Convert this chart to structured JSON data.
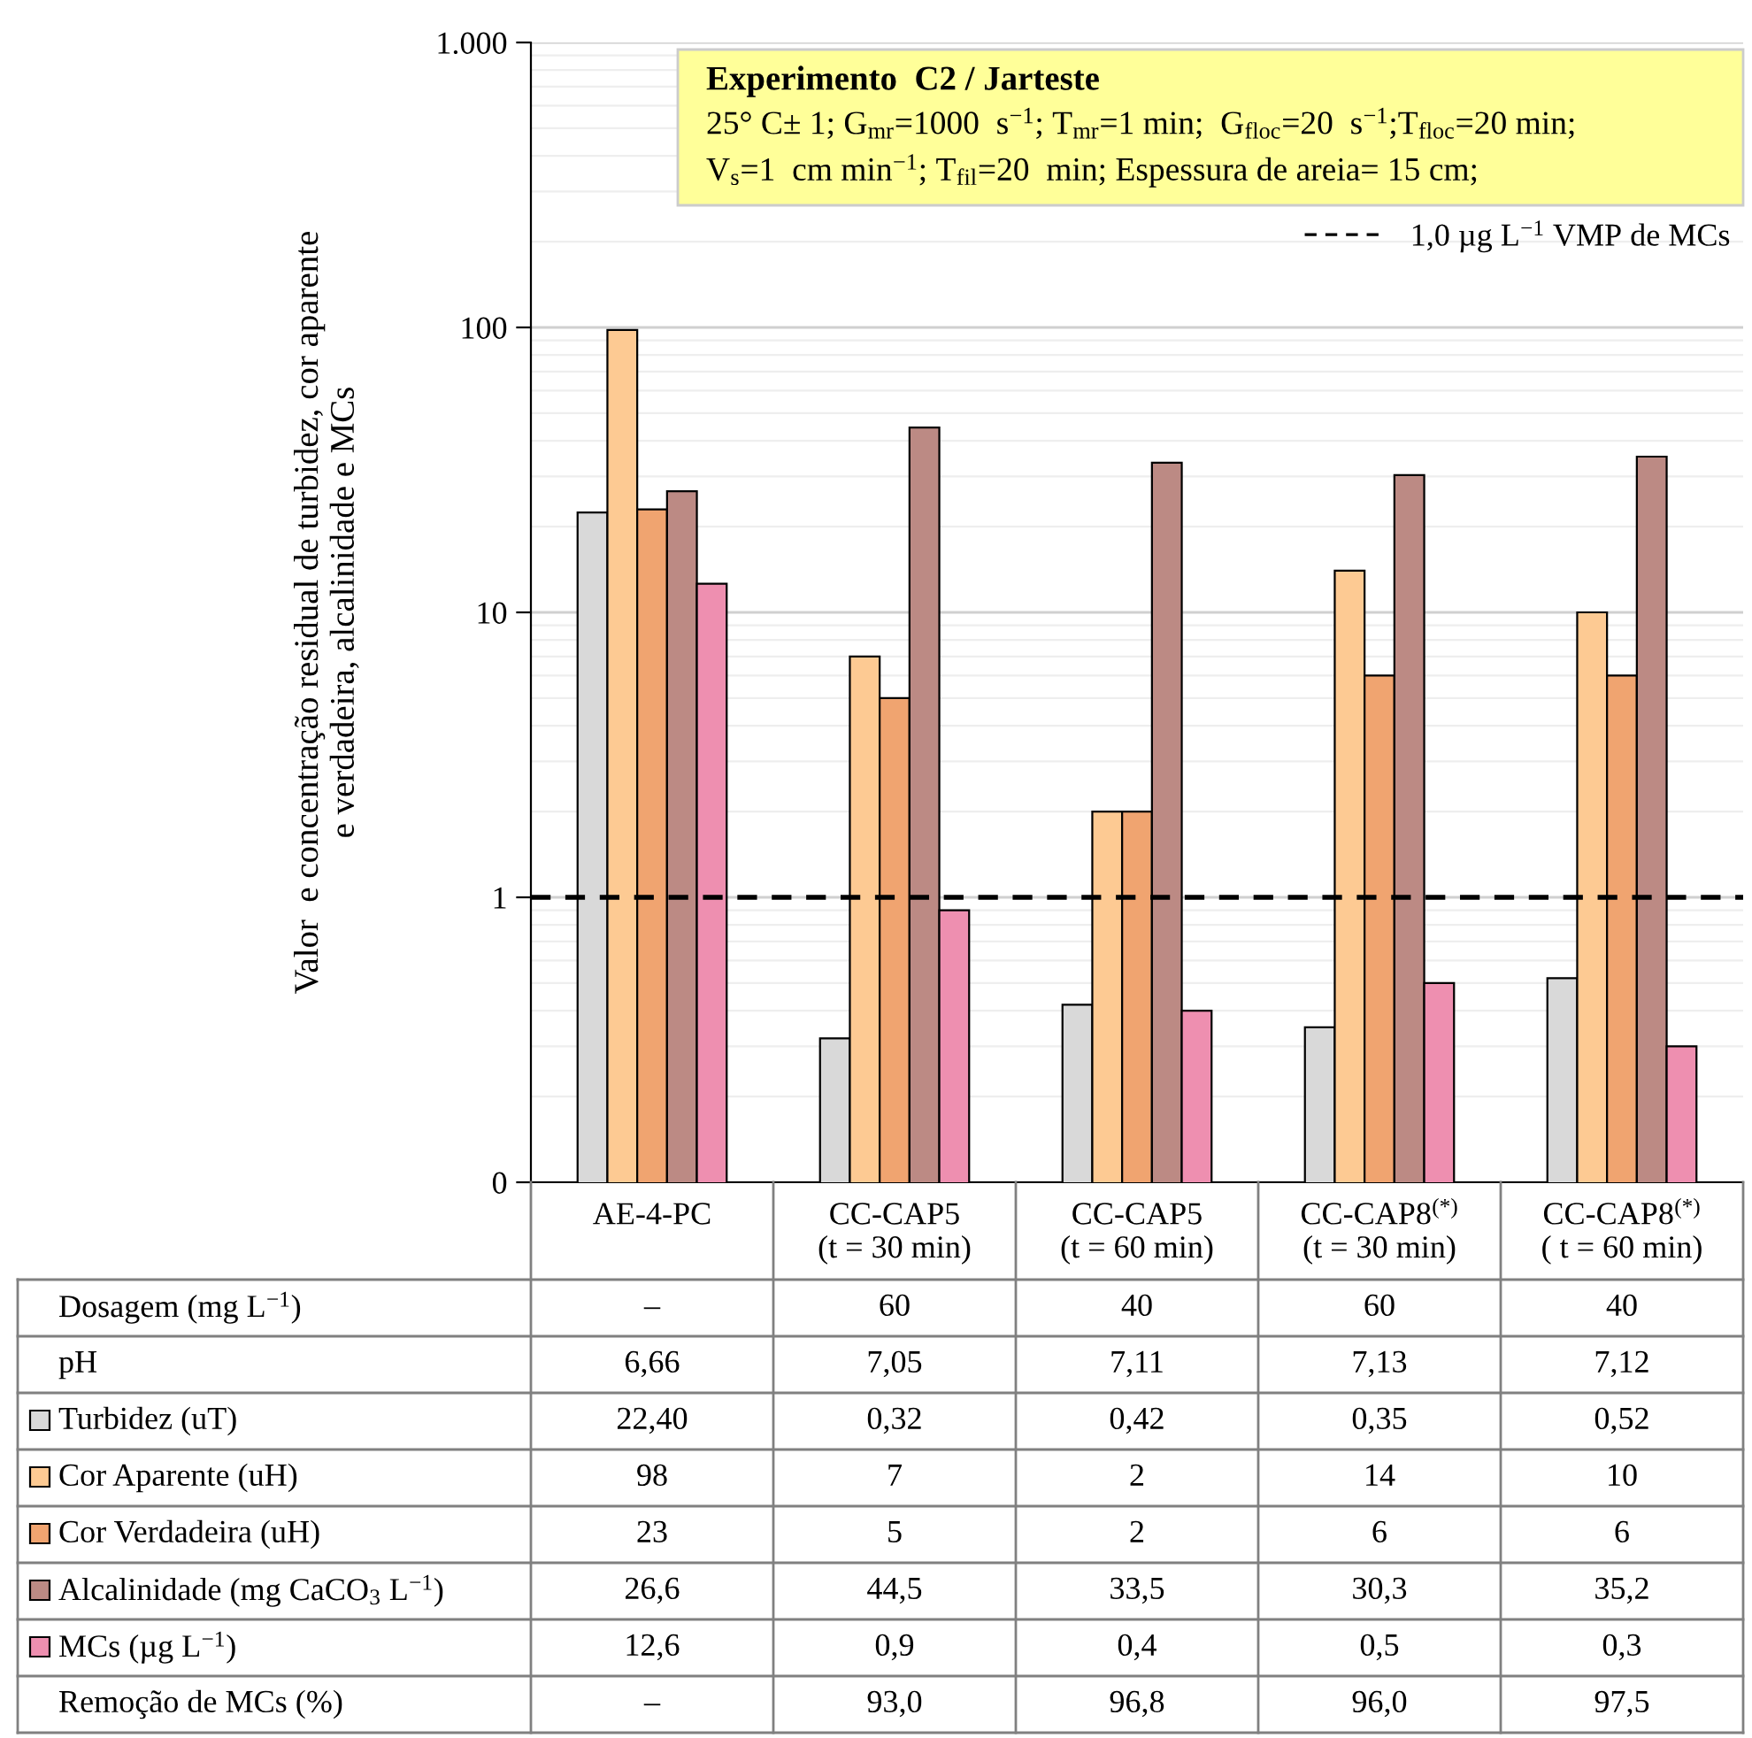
{
  "chart_data": {
    "type": "bar",
    "title": "Experimento  C2 / Jarteste",
    "subtitle": "25° C± 1; G$_{mr}$=1000  s$^{−1}$; T$_{mr}$=1 min;  G$_{floc}$=20  s$^{−1}$;T$_{floc}$=20 min;\nV$_{s}$=1  cm min$^{−1}$; T$_{fil}$=20  min; Espessura de areia= 15 cm;",
    "ylabel": "Valor  e concentração residual de turbidez, cor aparente\ne verdadeira, alcalinidade e MCs",
    "categories": [
      "AE-4-PC",
      "CC-CAP5\n(t = 30 min)",
      "CC-CAP5\n(t = 60 min)",
      "CC-CAP8$^{(*)}$\n(t = 30 min)",
      "CC-CAP8$^{(*)}$\n( t = 60 min)"
    ],
    "series": [
      {
        "name": "Turbidez (uT)",
        "color": "#d9d9d9",
        "values": [
          22.4,
          0.32,
          0.42,
          0.35,
          0.52
        ],
        "value_labels": [
          "22,40",
          "0,32",
          "0,42",
          "0,35",
          "0,52"
        ]
      },
      {
        "name": "Cor Aparente (uH)",
        "color": "#fdca93",
        "values": [
          98,
          7,
          2,
          14,
          10
        ],
        "value_labels": [
          "98",
          "7",
          "2",
          "14",
          "10"
        ]
      },
      {
        "name": "Cor Verdadeira (uH)",
        "color": "#f0a470",
        "values": [
          23,
          5,
          2,
          6,
          6
        ],
        "value_labels": [
          "23",
          "5",
          "2",
          "6",
          "6"
        ]
      },
      {
        "name": "Alcalinidade (mg CaCO$_{3}$ L$^{−1}$)",
        "color": "#bc8a84",
        "values": [
          26.6,
          44.5,
          33.5,
          30.3,
          35.2
        ],
        "value_labels": [
          "26,6",
          "44,5",
          "33,5",
          "30,3",
          "35,2"
        ]
      },
      {
        "name": "MCs (µg L$^{−1}$)",
        "color": "#ee8fb0",
        "values": [
          12.6,
          0.9,
          0.4,
          0.5,
          0.3
        ],
        "value_labels": [
          "12,6",
          "0,9",
          "0,4",
          "0,5",
          "0,3"
        ]
      }
    ],
    "annotations": [
      "Dosagem (mg L$^{−1}$)",
      "–",
      "60",
      "40",
      "60",
      "40",
      "pH",
      "6,66",
      "7,05",
      "7,11",
      "7,13",
      "7,12",
      "Remoção de MCs (%)",
      "–",
      "93,0",
      "96,8",
      "96,0",
      "97,5"
    ],
    "log": "y",
    "ylim": [
      0.1,
      1000
    ],
    "yticks": [
      {
        "value": 0.1,
        "label": "0"
      },
      1,
      10,
      100,
      {
        "value": 1000,
        "label": "1.000"
      }
    ],
    "grid": "y",
    "ref_lines": [
      {
        "axis": "y",
        "value": 1,
        "label": "1,0 µg L$^{−1}$ VMP de MCs",
        "color": "#000000",
        "line_style": "dashed"
      }
    ],
    "legend": "bottom"
  }
}
